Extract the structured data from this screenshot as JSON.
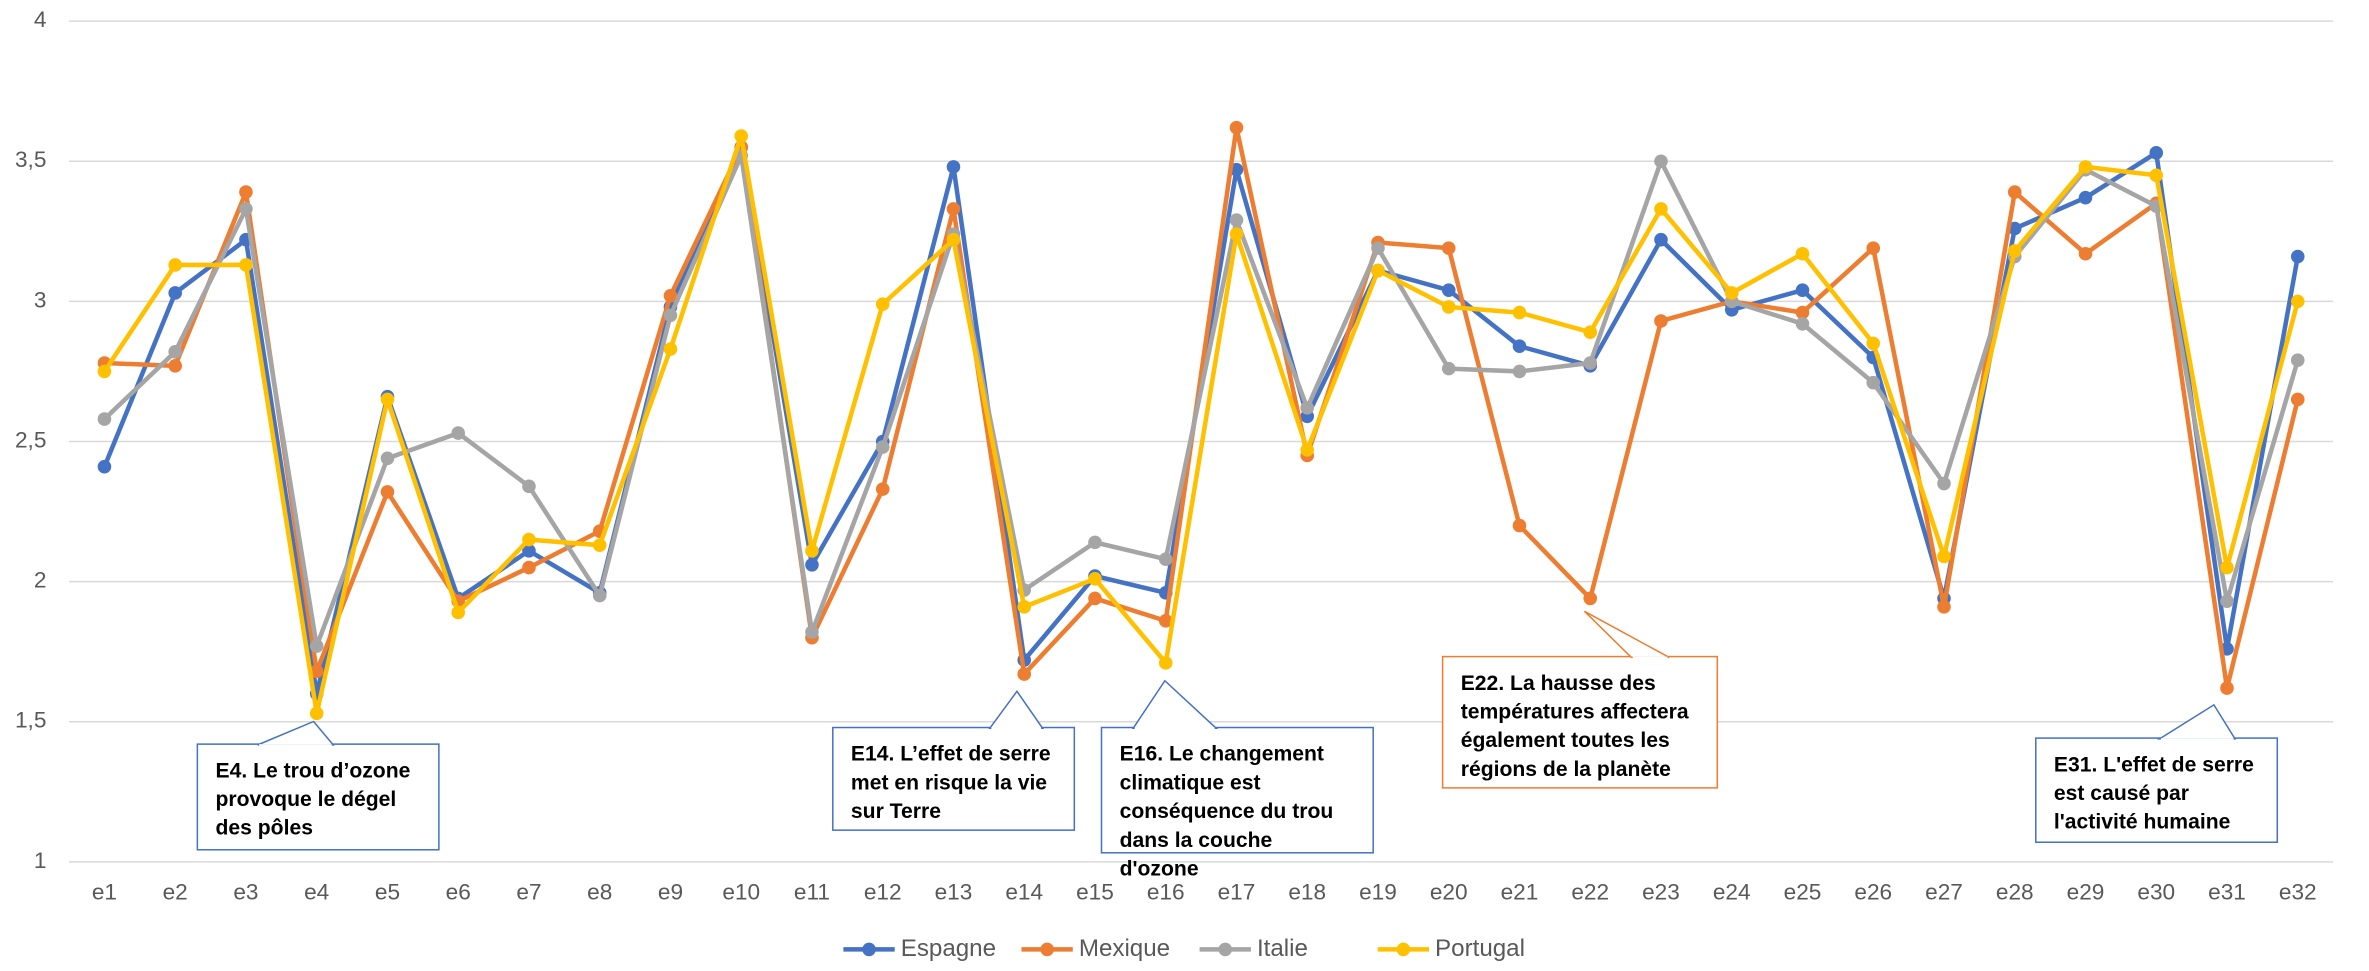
{
  "chart_data": {
    "type": "line",
    "categories": [
      "e1",
      "e2",
      "e3",
      "e4",
      "e5",
      "e6",
      "e7",
      "e8",
      "e9",
      "e10",
      "e11",
      "e12",
      "e13",
      "e14",
      "e15",
      "e16",
      "e17",
      "e18",
      "e19",
      "e20",
      "e21",
      "e22",
      "e23",
      "e24",
      "e25",
      "e26",
      "e27",
      "e28",
      "e29",
      "e30",
      "e31",
      "e32"
    ],
    "series": [
      {
        "name": "Espagne",
        "color": "#4472c4",
        "values": [
          2.41,
          3.03,
          3.22,
          1.6,
          2.66,
          1.94,
          2.11,
          1.96,
          2.98,
          3.55,
          2.06,
          2.5,
          3.48,
          1.72,
          2.02,
          1.96,
          3.47,
          2.59,
          3.11,
          3.04,
          2.84,
          2.77,
          3.22,
          2.97,
          3.04,
          2.8,
          1.94,
          3.26,
          3.37,
          3.53,
          1.76,
          3.16
        ]
      },
      {
        "name": "Mexique",
        "color": "#ed7d31",
        "values": [
          2.78,
          2.77,
          3.39,
          1.68,
          2.32,
          1.93,
          2.05,
          2.18,
          3.02,
          3.55,
          1.8,
          2.33,
          3.33,
          1.67,
          1.94,
          1.86,
          3.62,
          2.45,
          3.21,
          3.19,
          2.2,
          1.94,
          2.93,
          3.0,
          2.96,
          3.19,
          1.91,
          3.39,
          3.17,
          3.35,
          1.62,
          2.65
        ]
      },
      {
        "name": "Italie",
        "color": "#a5a5a5",
        "values": [
          2.58,
          2.82,
          3.33,
          1.77,
          2.44,
          2.53,
          2.34,
          1.95,
          2.95,
          3.52,
          1.82,
          2.48,
          3.24,
          1.97,
          2.14,
          2.08,
          3.29,
          2.62,
          3.19,
          2.76,
          2.75,
          2.78,
          3.5,
          3.0,
          2.92,
          2.71,
          2.35,
          3.16,
          3.47,
          3.34,
          1.93,
          2.79
        ]
      },
      {
        "name": "Portugal",
        "color": "#ffc000",
        "values": [
          2.75,
          3.13,
          3.13,
          1.53,
          2.65,
          1.89,
          2.15,
          2.13,
          2.83,
          3.59,
          2.11,
          2.99,
          3.22,
          1.91,
          2.01,
          1.71,
          3.24,
          2.47,
          3.11,
          2.98,
          2.96,
          2.89,
          3.33,
          3.03,
          3.17,
          2.85,
          2.09,
          3.18,
          3.48,
          3.45,
          2.05,
          3.0
        ]
      }
    ],
    "ylim": [
      1,
      4
    ],
    "yticks": [
      1,
      {
        "value": 1.5,
        "label": "1,5"
      },
      2,
      {
        "value": 2.5,
        "label": "2,5"
      },
      3,
      {
        "value": 3.5,
        "label": "3,5"
      },
      4
    ],
    "grid": true,
    "legend": "bottom",
    "annotations": [
      {
        "text": "E4. Le trou d’ozone provoque le dégel des pôles",
        "color": "#4472c4"
      },
      {
        "text": "E14. L’effet de serre met en risque la vie sur Terre",
        "color": "#4472c4"
      },
      {
        "text": "E16. Le changement climatique est conséquence du trou dans la couche d'ozone",
        "color": "#4472c4"
      },
      {
        "text": "E22. La hausse des températures affectera également toutes les régions de la planète",
        "color": "#ed7d31"
      },
      {
        "text": "E31. L'effet de serre est causé par l'activité humaine",
        "color": "#4472c4"
      }
    ]
  }
}
